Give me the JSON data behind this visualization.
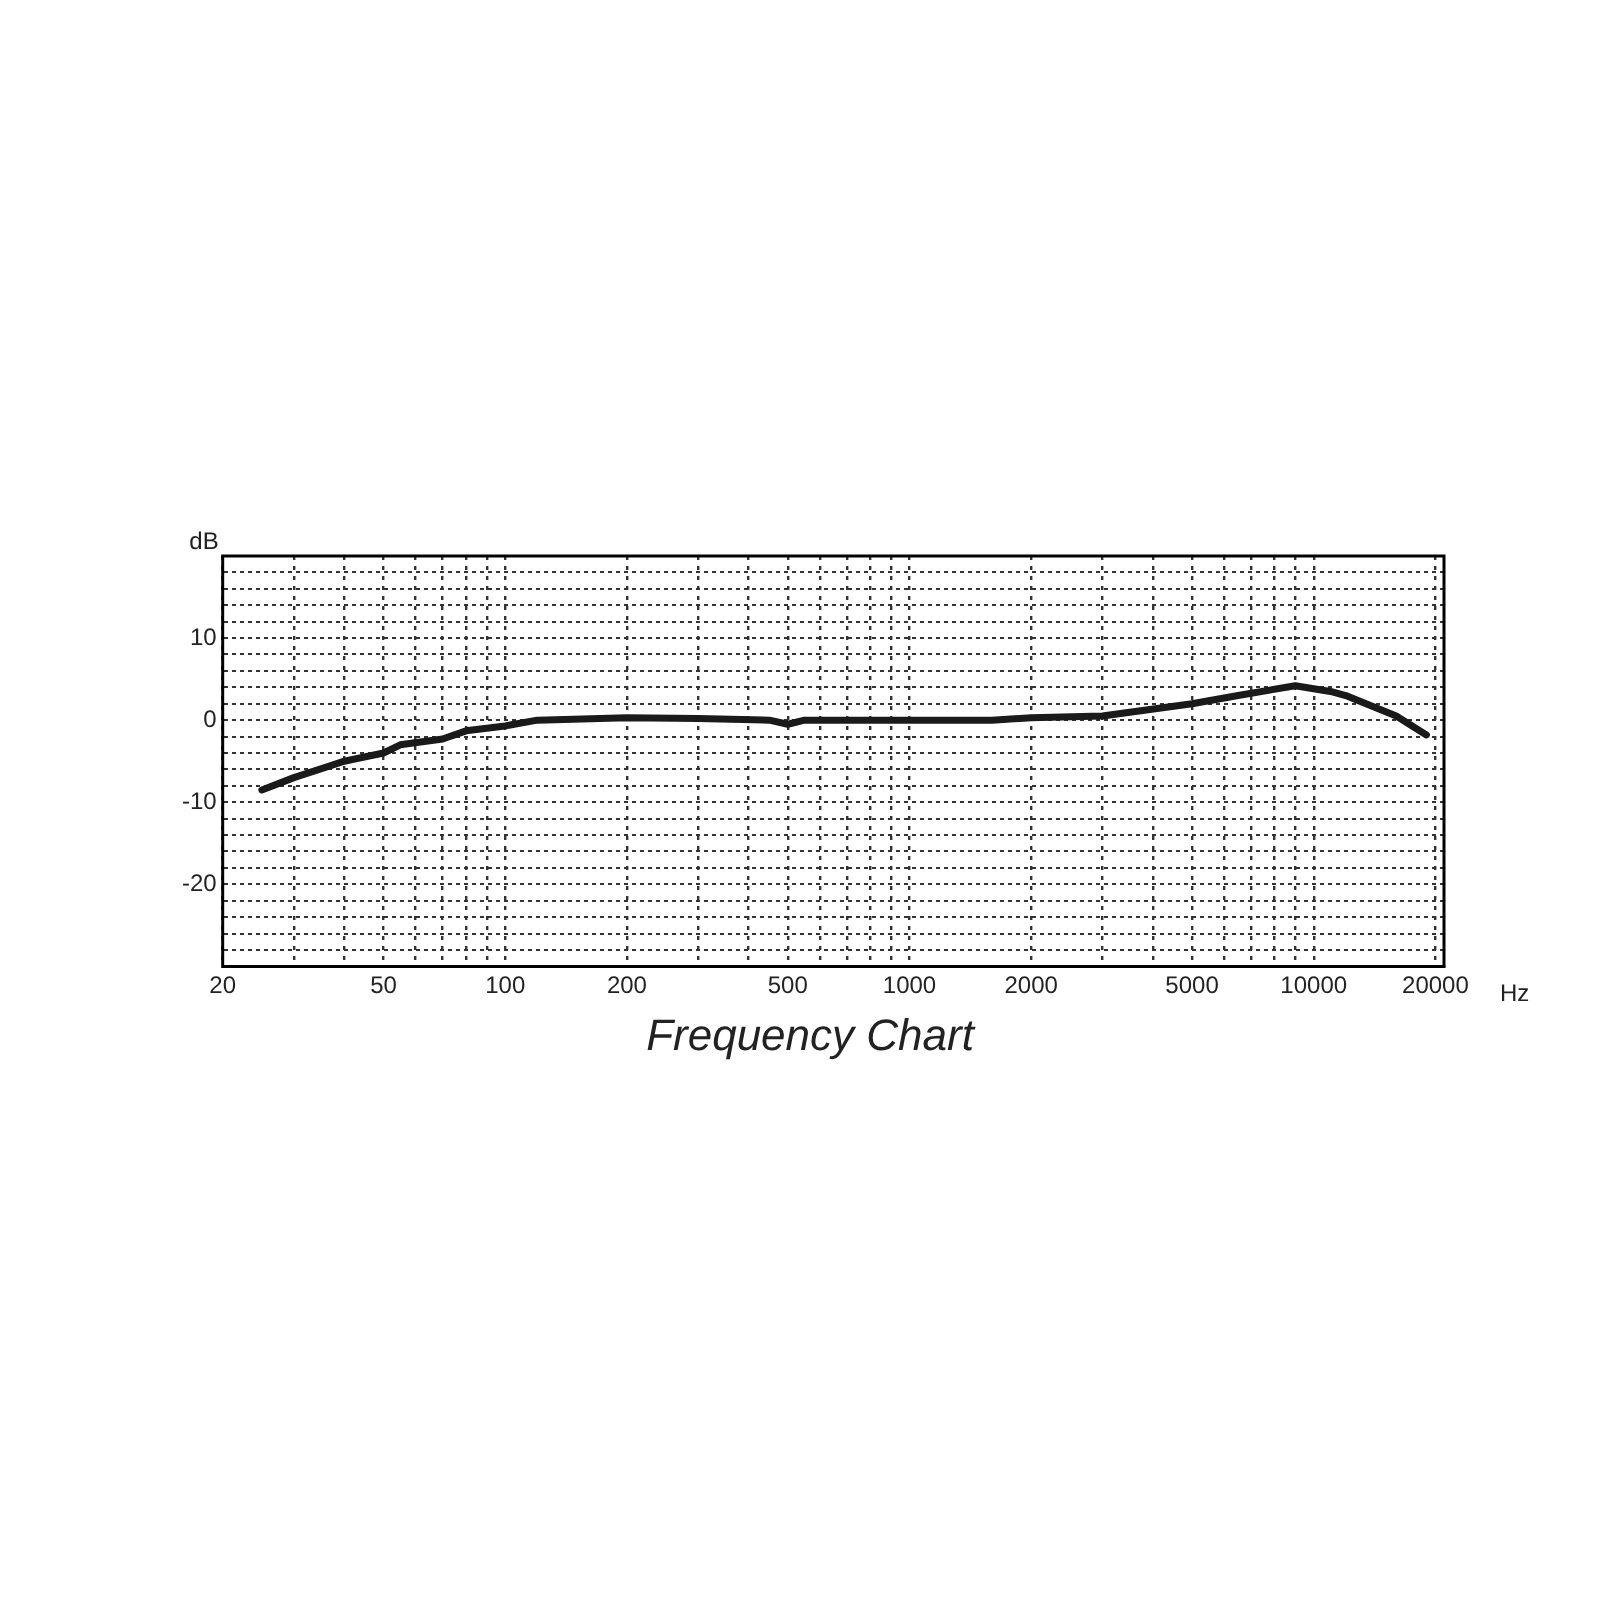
{
  "chart_data": {
    "type": "line",
    "title": "Frequency Chart",
    "xlabel": "Hz",
    "ylabel": "dB",
    "log": "x",
    "grid": true,
    "legend": false,
    "marker": "none",
    "line_style": "solid",
    "x": [
      25,
      30,
      40,
      50,
      55,
      70,
      80,
      100,
      120,
      200,
      300,
      450,
      500,
      550,
      1000,
      1600,
      2000,
      3000,
      5000,
      6500,
      9000,
      11000,
      12000,
      16000,
      19000
    ],
    "series": [
      {
        "color": "#1a1a1a",
        "values": [
          -8.5,
          -7,
          -5,
          -4,
          -3,
          -2.3,
          -1.3,
          -0.7,
          0,
          0.3,
          0.2,
          0,
          -0.5,
          0,
          0,
          0,
          0.3,
          0.5,
          2,
          3,
          4.2,
          3.5,
          3,
          0.5,
          -1.8
        ]
      }
    ],
    "xlim": [
      20,
      21000
    ],
    "xticks": [
      20,
      {
        "value": 30,
        "label": null
      },
      {
        "value": 40,
        "label": null
      },
      50,
      {
        "value": 60,
        "label": null
      },
      {
        "value": 70,
        "label": null
      },
      {
        "value": 80,
        "label": null
      },
      {
        "value": 90,
        "label": null
      },
      100,
      200,
      {
        "value": 300,
        "label": null
      },
      {
        "value": 400,
        "label": null
      },
      500,
      {
        "value": 600,
        "label": null
      },
      {
        "value": 700,
        "label": null
      },
      {
        "value": 800,
        "label": null
      },
      {
        "value": 900,
        "label": null
      },
      1000,
      2000,
      {
        "value": 3000,
        "label": null
      },
      {
        "value": 4000,
        "label": null
      },
      5000,
      {
        "value": 6000,
        "label": null
      },
      {
        "value": 7000,
        "label": null
      },
      {
        "value": 8000,
        "label": null
      },
      {
        "value": 9000,
        "label": null
      },
      10000,
      20000
    ],
    "ylim": [
      -30,
      20
    ],
    "yticks": [
      {
        "value": -30,
        "label": null
      },
      {
        "value": -28,
        "label": null
      },
      {
        "value": -26,
        "label": null
      },
      {
        "value": -24,
        "label": null
      },
      {
        "value": -22,
        "label": null
      },
      -20,
      {
        "value": -18,
        "label": null
      },
      {
        "value": -16,
        "label": null
      },
      {
        "value": -14,
        "label": null
      },
      {
        "value": -12,
        "label": null
      },
      -10,
      {
        "value": -8,
        "label": null
      },
      {
        "value": -6,
        "label": null
      },
      {
        "value": -4,
        "label": null
      },
      {
        "value": -2,
        "label": null
      },
      0,
      {
        "value": 2,
        "label": null
      },
      {
        "value": 4,
        "label": null
      },
      {
        "value": 6,
        "label": null
      },
      {
        "value": 8,
        "label": null
      },
      10,
      {
        "value": 12,
        "label": null
      },
      {
        "value": 14,
        "label": null
      },
      {
        "value": 16,
        "label": null
      },
      {
        "value": 18,
        "label": null
      },
      {
        "value": 20,
        "label": null
      }
    ]
  }
}
